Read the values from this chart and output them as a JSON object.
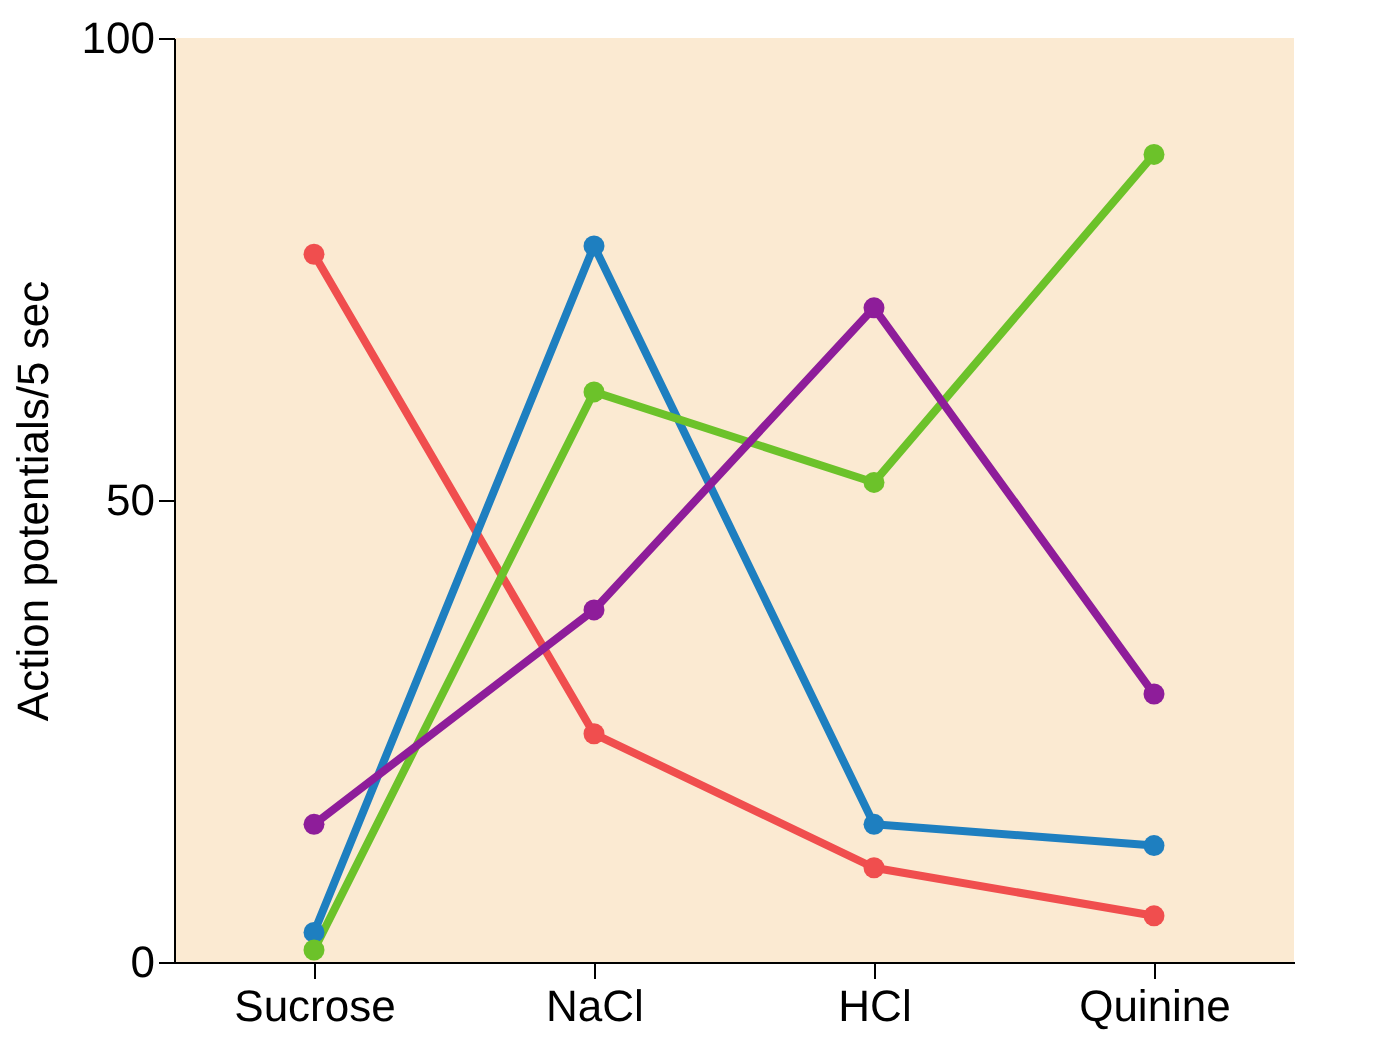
{
  "chart_data": {
    "type": "line",
    "ylabel": "Action potentials/5 sec",
    "categories": [
      "Sucrose",
      "NaCl",
      "HCl",
      "Quinine"
    ],
    "ylim": [
      0,
      100
    ],
    "yticks": [
      0,
      50,
      100
    ],
    "grid": false,
    "legend": false,
    "marker": "circle",
    "line_style": "solid",
    "series": [
      {
        "color": "#f04e4e",
        "values": [
          76.6,
          24.7,
          10.2,
          5
        ]
      },
      {
        "color": "#1e7fc0",
        "values": [
          3.2,
          77.5,
          14.9,
          12.6
        ]
      },
      {
        "color": "#6cc22a",
        "values": [
          1.3,
          61.7,
          51.9,
          87.4
        ]
      },
      {
        "color": "#8e1d9a",
        "values": [
          14.9,
          38.1,
          70.8,
          29
        ]
      }
    ]
  }
}
